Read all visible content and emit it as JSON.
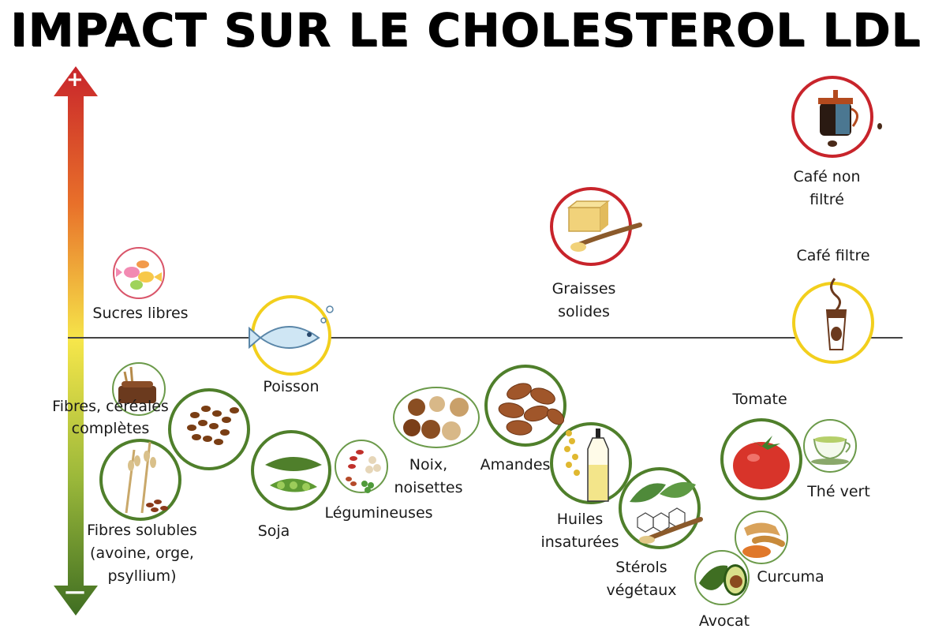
{
  "title": "IMPACT SUR LE CHOLESTEROL LDL",
  "axis": {
    "top_sign": "+",
    "bottom_sign": "—"
  },
  "colors": {
    "increase": "#c8242b",
    "neutral": "#f2cf1d",
    "decrease": "#4f7f2b"
  },
  "items": {
    "cafe_non_filtre": {
      "line1": "Café non",
      "line2": "filtré",
      "icon": "french-press-coffee-icon"
    },
    "cafe_filtre": {
      "label": "Café filtre",
      "icon": "coffee-cup-icon"
    },
    "graisses_solides": {
      "line1": "Graisses",
      "line2": "solides",
      "icon": "butter-icon"
    },
    "sucres_libres": {
      "label": "Sucres libres",
      "icon": "candy-icon"
    },
    "poisson": {
      "label": "Poisson",
      "icon": "fish-icon"
    },
    "fibres_cereales": {
      "line1": "Fibres, céréales",
      "line2": "complètes",
      "icon": "bread-icon"
    },
    "fibres_solubles": {
      "line1": "Fibres solubles",
      "line2": "(avoine, orge,",
      "line3": "psyllium)",
      "icon": "oat-icon"
    },
    "soja": {
      "label": "Soja",
      "icon": "soybean-icon"
    },
    "legumineuses": {
      "label": "Légumineuses",
      "icon": "legumes-icon"
    },
    "noix": {
      "line1": "Noix,",
      "line2": "noisettes",
      "icon": "nuts-icon"
    },
    "amandes": {
      "label": "Amandes",
      "icon": "almonds-icon"
    },
    "huiles": {
      "line1": "Huiles",
      "line2": "insaturées",
      "icon": "oil-bottle-icon"
    },
    "sterols": {
      "line1": "Stérols",
      "line2": "végétaux",
      "icon": "sterol-leaf-icon"
    },
    "tomate": {
      "label": "Tomate",
      "icon": "tomato-icon"
    },
    "the_vert": {
      "label": "Thé vert",
      "icon": "tea-cup-icon"
    },
    "curcuma": {
      "label": "Curcuma",
      "icon": "turmeric-icon"
    },
    "avocat": {
      "label": "Avocat",
      "icon": "avocado-icon"
    }
  }
}
